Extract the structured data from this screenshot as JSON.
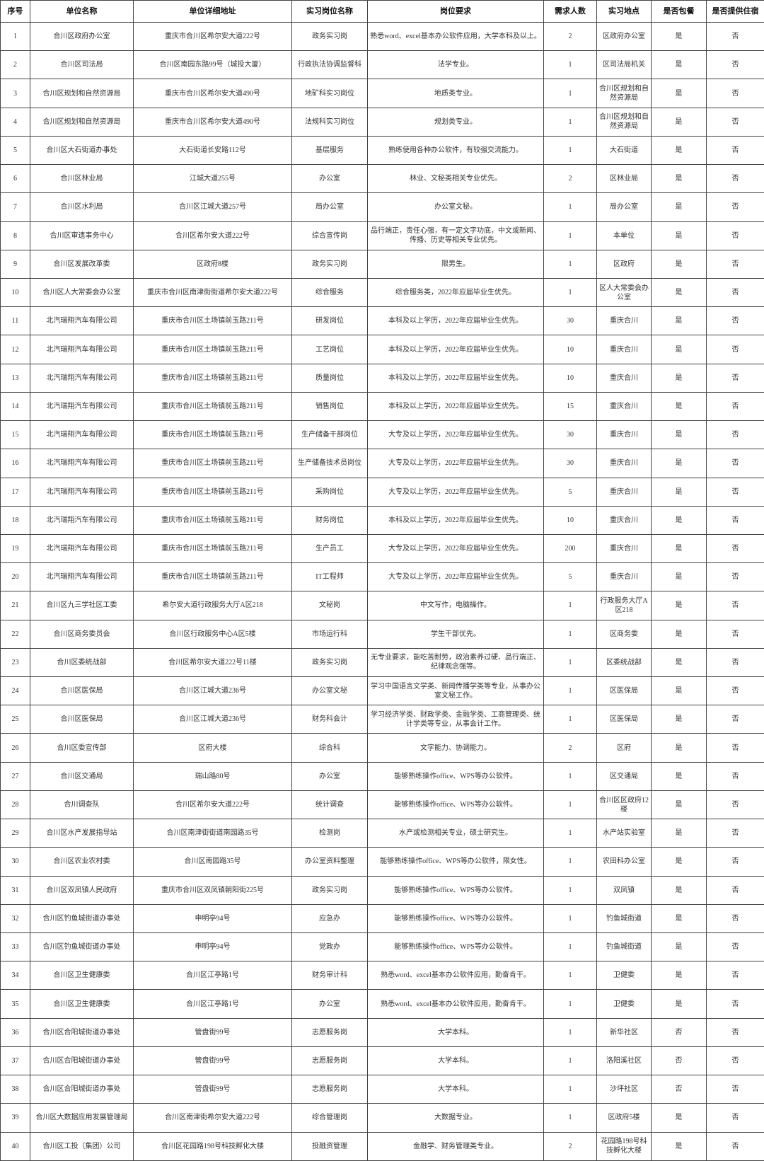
{
  "headers": [
    "序号",
    "单位名称",
    "单位详细地址",
    "实习岗位名称",
    "岗位要求",
    "需求人数",
    "实习地点",
    "是否包餐",
    "是否提供住宿"
  ],
  "rows": [
    [
      "1",
      "合川区政府办公室",
      "重庆市合川区希尔安大道222号",
      "政务实习岗",
      "熟悉word、excel基本办公软件应用，大学本科及以上。",
      "2",
      "区政府办公室",
      "是",
      "否"
    ],
    [
      "2",
      "合川区司法局",
      "合川区南园东路99号（城投大厦）",
      "行政执法协调监督科",
      "法学专业。",
      "1",
      "区司法局机关",
      "是",
      "否"
    ],
    [
      "3",
      "合川区规划和自然资源局",
      "重庆市合川区希尔安大道490号",
      "地矿科实习岗位",
      "地质类专业。",
      "1",
      "合川区规划和自然资源局",
      "是",
      "否"
    ],
    [
      "4",
      "合川区规划和自然资源局",
      "重庆市合川区希尔安大道490号",
      "法规科实习岗位",
      "规划类专业。",
      "1",
      "合川区规划和自然资源局",
      "是",
      "否"
    ],
    [
      "5",
      "合川区大石街道办事处",
      "大石街道长安路112号",
      "基层服务",
      "熟练使用各种办公软件，有较强交流能力。",
      "1",
      "大石街道",
      "是",
      "否"
    ],
    [
      "6",
      "合川区林业局",
      "江城大道255号",
      "办公室",
      "林业、文秘类相关专业优先。",
      "2",
      "区林业局",
      "是",
      "否"
    ],
    [
      "7",
      "合川区水利局",
      "合川区江城大道257号",
      "局办公室",
      "办公室文秘。",
      "1",
      "局办公室",
      "是",
      "否"
    ],
    [
      "8",
      "合川区审遗事务中心",
      "合川区希尔安大道222号",
      "综合宣传岗",
      "品行端正，责任心强，有一定文字功底，中文或新闻、传播、历史等相关专业优先。",
      "1",
      "本单位",
      "是",
      "否"
    ],
    [
      "9",
      "合川区发展改革委",
      "区政府8楼",
      "政务实习岗",
      "限男生。",
      "1",
      "区政府",
      "是",
      "否"
    ],
    [
      "10",
      "合川区人大常委会办公室",
      "重庆市合川区南津街街道希尔安大道222号",
      "综合服务",
      "综合服务类，2022年应届毕业生优先。",
      "1",
      "区人大常委会办公室",
      "是",
      "否"
    ],
    [
      "11",
      "北汽瑞翔汽车有限公司",
      "重庆市合川区土场镇前玉路211号",
      "研发岗位",
      "本科及以上学历，2022年应届毕业生优先。",
      "30",
      "重庆合川",
      "是",
      "否"
    ],
    [
      "12",
      "北汽瑞翔汽车有限公司",
      "重庆市合川区土场镇前玉路211号",
      "工艺岗位",
      "本科及以上学历，2022年应届毕业生优先。",
      "10",
      "重庆合川",
      "是",
      "否"
    ],
    [
      "13",
      "北汽瑞翔汽车有限公司",
      "重庆市合川区土场镇前玉路211号",
      "质量岗位",
      "本科及以上学历，2022年应届毕业生优先。",
      "10",
      "重庆合川",
      "是",
      "否"
    ],
    [
      "14",
      "北汽瑞翔汽车有限公司",
      "重庆市合川区土场镇前玉路211号",
      "销售岗位",
      "本科及以上学历，2022年应届毕业生优先。",
      "15",
      "重庆合川",
      "是",
      "否"
    ],
    [
      "15",
      "北汽瑞翔汽车有限公司",
      "重庆市合川区土场镇前玉路211号",
      "生产储备干部岗位",
      "大专及以上学历，2022年应届毕业生优先。",
      "30",
      "重庆合川",
      "是",
      "否"
    ],
    [
      "16",
      "北汽瑞翔汽车有限公司",
      "重庆市合川区土场镇前玉路211号",
      "生产储备技术员岗位",
      "大专及以上学历，2022年应届毕业生优先。",
      "30",
      "重庆合川",
      "是",
      "否"
    ],
    [
      "17",
      "北汽瑞翔汽车有限公司",
      "重庆市合川区土场镇前玉路211号",
      "采购岗位",
      "大专及以上学历，2022年应届毕业生优先。",
      "5",
      "重庆合川",
      "是",
      "否"
    ],
    [
      "18",
      "北汽瑞翔汽车有限公司",
      "重庆市合川区土场镇前玉路211号",
      "财务岗位",
      "本科及以上学历，2022年应届毕业生优先。",
      "10",
      "重庆合川",
      "是",
      "否"
    ],
    [
      "19",
      "北汽瑞翔汽车有限公司",
      "重庆市合川区土场镇前玉路211号",
      "生产员工",
      "大专及以上学历，2022年应届毕业生优先。",
      "200",
      "重庆合川",
      "是",
      "否"
    ],
    [
      "20",
      "北汽瑞翔汽车有限公司",
      "重庆市合川区土场镇前玉路211号",
      "IT工程师",
      "大专及以上学历，2022年应届毕业生优先。",
      "5",
      "重庆合川",
      "是",
      "否"
    ],
    [
      "21",
      "合川区九三学社区工委",
      "希尔安大道行政服务大厅A区218",
      "文秘岗",
      "中文写作，电脑操作。",
      "1",
      "行政服务大厅A区218",
      "是",
      "否"
    ],
    [
      "22",
      "合川区商务委员会",
      "合川区行政服务中心A区5楼",
      "市场运行科",
      "学生干部优先。",
      "1",
      "区商务委",
      "是",
      "否"
    ],
    [
      "23",
      "合川区委统战部",
      "合川区希尔安大道222号11楼",
      "政务实习岗",
      "无专业要求，能吃苦耐劳，政治素养过硬、品行端正、纪律观念强等。",
      "1",
      "区委统战部",
      "是",
      "否"
    ],
    [
      "24",
      "合川区医保局",
      "合川区江城大道236号",
      "办公室文秘",
      "学习中国语言文学类、新闻传播学类等专业，从事办公室文秘工作。",
      "1",
      "区医保局",
      "是",
      "否"
    ],
    [
      "25",
      "合川区医保局",
      "合川区江城大道236号",
      "财务科会计",
      "学习经济学类、财政学类、金融学类、工商管理类、统计学类等专业，从事会计工作。",
      "1",
      "区医保局",
      "是",
      "否"
    ],
    [
      "26",
      "合川区委宣传部",
      "区府大楼",
      "综合科",
      "文字能力、协调能力。",
      "2",
      "区府",
      "是",
      "否"
    ],
    [
      "27",
      "合川区交通局",
      "瑞山路80号",
      "办公室",
      "能够熟练操作office、WPS等办公软件。",
      "1",
      "区交通局",
      "是",
      "否"
    ],
    [
      "28",
      "合川调查队",
      "合川区希尔安大道222号",
      "统计调查",
      "能够熟练操作office、WPS等办公软件。",
      "1",
      "合川区区政府12楼",
      "是",
      "否"
    ],
    [
      "29",
      "合川区水产发展指导站",
      "合川区南津街街道南园路35号",
      "检测岗",
      "水产或检测相关专业，硕士研究生。",
      "1",
      "水产站实验室",
      "是",
      "否"
    ],
    [
      "30",
      "合川区农业农村委",
      "合川区南园路35号",
      "办公室资料整理",
      "能够熟练操作office、WPS等办公软件，限女性。",
      "1",
      "农田科办公室",
      "是",
      "否"
    ],
    [
      "31",
      "合川区双凤镇人民政府",
      "重庆市合川区双凤镇朝阳街225号",
      "政务实习岗",
      "能够熟练操作office、WPS等办公软件。",
      "1",
      "双凤镇",
      "是",
      "否"
    ],
    [
      "32",
      "合川区钓鱼城街道办事处",
      "申明亭94号",
      "应急办",
      "能够熟练操作office、WPS等办公软件。",
      "1",
      "钓鱼城街道",
      "是",
      "否"
    ],
    [
      "33",
      "合川区钓鱼城街道办事处",
      "申明亭94号",
      "党政办",
      "能够熟练操作office、WPS等办公软件。",
      "1",
      "钓鱼城街道",
      "是",
      "否"
    ],
    [
      "34",
      "合川区卫生健康委",
      "合川区江亭路1号",
      "财务审计科",
      "熟悉word、excel基本办公软件应用，勤奋肯干。",
      "1",
      "卫健委",
      "是",
      "否"
    ],
    [
      "35",
      "合川区卫生健康委",
      "合川区江亭路1号",
      "办公室",
      "熟悉word、excel基本办公软件应用，勤奋肯干。",
      "1",
      "卫健委",
      "是",
      "否"
    ],
    [
      "36",
      "合川区合阳城街道办事处",
      "管盘街99号",
      "志愿服务岗",
      "大学本科。",
      "1",
      "新华社区",
      "否",
      "否"
    ],
    [
      "37",
      "合川区合阳城街道办事处",
      "管盘街99号",
      "志愿服务岗",
      "大学本科。",
      "1",
      "洛阳溪社区",
      "否",
      "否"
    ],
    [
      "38",
      "合川区合阳城街道办事处",
      "管盘街99号",
      "志愿服务岗",
      "大学本科。",
      "1",
      "沙坪社区",
      "否",
      "否"
    ],
    [
      "39",
      "合川区大数据应用发展管理局",
      "合川区南津街希尔安大道222号",
      "综合管理岗",
      "大数据专业。",
      "1",
      "区政府5楼",
      "是",
      "否"
    ],
    [
      "40",
      "合川区工投（集团）公司",
      "合川区花园路198号科技孵化大楼",
      "投融资管理",
      "金融学、财务管理类专业。",
      "2",
      "花园路198号科技孵化大楼",
      "是",
      "否"
    ]
  ]
}
